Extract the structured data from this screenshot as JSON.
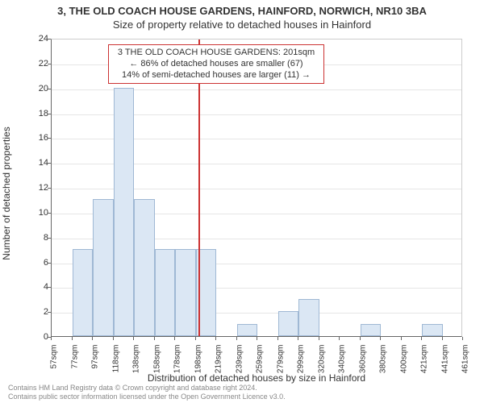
{
  "title": {
    "line1": "3, THE OLD COACH HOUSE GARDENS, HAINFORD, NORWICH, NR10 3BA",
    "line2": "Size of property relative to detached houses in Hainford"
  },
  "chart": {
    "type": "histogram",
    "y_axis": {
      "label": "Number of detached properties",
      "min": 0,
      "max": 24,
      "tick_step": 2,
      "ticks": [
        0,
        2,
        4,
        6,
        8,
        10,
        12,
        14,
        16,
        18,
        20,
        22,
        24
      ],
      "label_fontsize": 12,
      "tick_fontsize": 11
    },
    "x_axis": {
      "label": "Distribution of detached houses by size in Hainford",
      "tick_labels": [
        "57sqm",
        "77sqm",
        "97sqm",
        "118sqm",
        "138sqm",
        "158sqm",
        "178sqm",
        "198sqm",
        "219sqm",
        "239sqm",
        "259sqm",
        "279sqm",
        "299sqm",
        "320sqm",
        "340sqm",
        "360sqm",
        "380sqm",
        "400sqm",
        "421sqm",
        "441sqm",
        "461sqm"
      ],
      "label_fontsize": 12,
      "tick_fontsize": 10
    },
    "bars": {
      "values": [
        0,
        7,
        11,
        20,
        11,
        7,
        7,
        7,
        0,
        1,
        0,
        2,
        3,
        0,
        0,
        1,
        0,
        0,
        1,
        0,
        0
      ],
      "fill_color": "#dbe7f4",
      "border_color": "#9fb8d4",
      "bar_width_fraction": 1.0
    },
    "indicator": {
      "position_sqm": 201,
      "color": "#cc3333",
      "line_width": 2
    },
    "annotation": {
      "lines": [
        "3 THE OLD COACH HOUSE GARDENS: 201sqm",
        "← 86% of detached houses are smaller (67)",
        "14% of semi-detached houses are larger (11) →"
      ],
      "border_color": "#cc3333",
      "background_color": "#ffffff",
      "fontsize": 11
    },
    "grid": {
      "color": "#e6e6e6",
      "horizontal": true,
      "vertical": false
    },
    "background_color": "#ffffff",
    "axis_color": "#666666",
    "plot_border_color": "#cccccc"
  },
  "footer": {
    "line1": "Contains HM Land Registry data © Crown copyright and database right 2024.",
    "line2": "Contains public sector information licensed under the Open Government Licence v3.0."
  }
}
